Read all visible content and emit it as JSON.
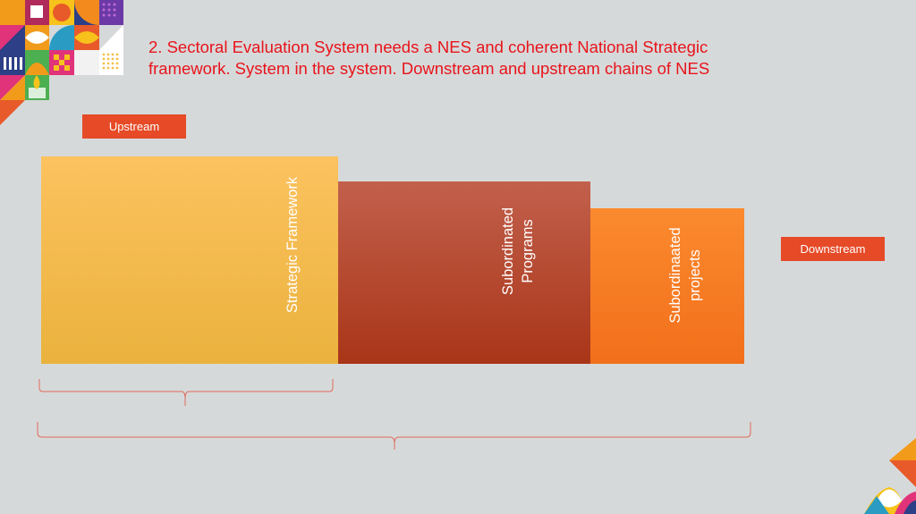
{
  "slide": {
    "title_line1": "2. Sectoral Evaluation System needs a NES and coherent National Strategic",
    "title_line2": "framework. System in the system. Downstream and upstream chains of NES",
    "upstream_label": "Upstream",
    "downstream_label": "Downstream",
    "blocks": [
      {
        "label": "Strategic Framework",
        "color_top": "#fcc25f",
        "color_bottom": "#eab23d"
      },
      {
        "label_line1": "Subordinated",
        "label_line2": "Programs",
        "color_top": "#c2604c",
        "color_bottom": "#a93518"
      },
      {
        "label_line1": "Subordinaated",
        "label_line2": "projects",
        "color_top": "#fb8a2e",
        "color_bottom": "#f26f1b"
      }
    ],
    "colors": {
      "background": "#d6d9da",
      "title": "#e8141b",
      "tag": "#e64a27",
      "brace": "#e06a5a"
    }
  }
}
